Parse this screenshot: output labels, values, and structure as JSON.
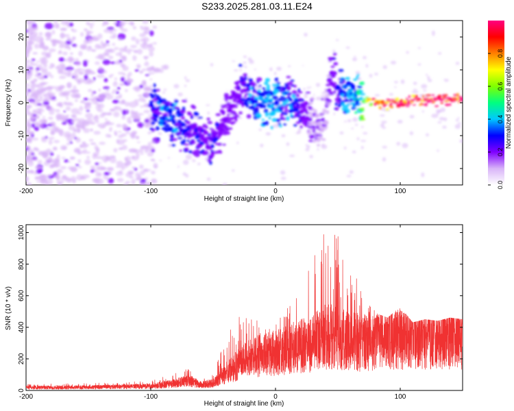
{
  "title": "S233.2025.281.03.11.E24",
  "chart_data": [
    {
      "type": "heatmap",
      "name": "spectrogram",
      "xlabel": "Height of straight line (km)",
      "ylabel": "Frequency (Hz)",
      "xlim": [
        -200,
        150
      ],
      "ylim": [
        -25,
        25
      ],
      "xticks": [
        -200,
        -100,
        0,
        100
      ],
      "yticks": [
        -20,
        -10,
        0,
        10,
        20
      ],
      "colorbar": {
        "label": "Normalized spectral amplitude",
        "range": [
          0.0,
          1.0
        ],
        "ticks": [
          0.0,
          0.2,
          0.4,
          0.6,
          0.8
        ],
        "tick_labels": [
          "0.0",
          "0.2",
          "0.4",
          "0.6",
          "0.8"
        ],
        "colors": [
          "#ffffff",
          "#d8b4f8",
          "#8000ff",
          "#0000ff",
          "#00c8ff",
          "#00ff80",
          "#80ff00",
          "#ffff00",
          "#ff8000",
          "#ff0000",
          "#ff0080"
        ]
      },
      "ridge": {
        "x": [
          -100,
          -90,
          -80,
          -70,
          -60,
          -55,
          -50,
          -45,
          -40,
          -35,
          -30,
          -25,
          -20,
          -15,
          -10,
          -5,
          0,
          5,
          10,
          15,
          20,
          25,
          30,
          35,
          40,
          45,
          50,
          55,
          60,
          65,
          70,
          80,
          90,
          100,
          110,
          120,
          130,
          140,
          150
        ],
        "y": [
          -1,
          -4,
          -6,
          -8,
          -10,
          -12,
          -12,
          -10,
          -6,
          -2,
          3,
          5,
          2,
          0,
          0,
          1,
          1,
          0,
          0,
          0,
          -1,
          -3,
          -6,
          -10,
          -4,
          10,
          3,
          2,
          2,
          1,
          1,
          0,
          0,
          0,
          1,
          1,
          1,
          1,
          1
        ],
        "amplitude": [
          0.25,
          0.3,
          0.3,
          0.25,
          0.25,
          0.2,
          0.25,
          0.2,
          0.2,
          0.2,
          0.2,
          0.25,
          0.3,
          0.3,
          0.35,
          0.35,
          0.35,
          0.3,
          0.3,
          0.3,
          0.25,
          0.2,
          0.15,
          0.15,
          0.15,
          0.2,
          0.25,
          0.3,
          0.35,
          0.4,
          0.5,
          0.85,
          0.9,
          0.95,
          0.9,
          0.95,
          0.95,
          0.95,
          0.9
        ]
      }
    },
    {
      "type": "line",
      "name": "snr",
      "xlabel": "Height of straight line (km)",
      "ylabel": "SNR (10 * v/v)",
      "xlim": [
        -200,
        150
      ],
      "ylim": [
        0,
        1050
      ],
      "xticks": [
        -200,
        -100,
        0,
        100
      ],
      "yticks": [
        0,
        200,
        400,
        600,
        800,
        1000
      ],
      "color": "#f03232",
      "envelope": {
        "x": [
          -200,
          -150,
          -100,
          -80,
          -70,
          -60,
          -50,
          -40,
          -30,
          -20,
          -10,
          0,
          10,
          20,
          30,
          40,
          50,
          60,
          70,
          80,
          90,
          100,
          110,
          120,
          130,
          140,
          150
        ],
        "mean": [
          20,
          22,
          30,
          50,
          70,
          40,
          50,
          120,
          180,
          230,
          250,
          260,
          290,
          310,
          330,
          380,
          370,
          360,
          330,
          370,
          380,
          360,
          380,
          380,
          390,
          380,
          380
        ],
        "max": [
          40,
          45,
          60,
          110,
          140,
          80,
          100,
          330,
          470,
          510,
          410,
          420,
          530,
          630,
          900,
          1030,
          980,
          790,
          700,
          490,
          460,
          530,
          430,
          450,
          440,
          460,
          450
        ]
      }
    }
  ]
}
